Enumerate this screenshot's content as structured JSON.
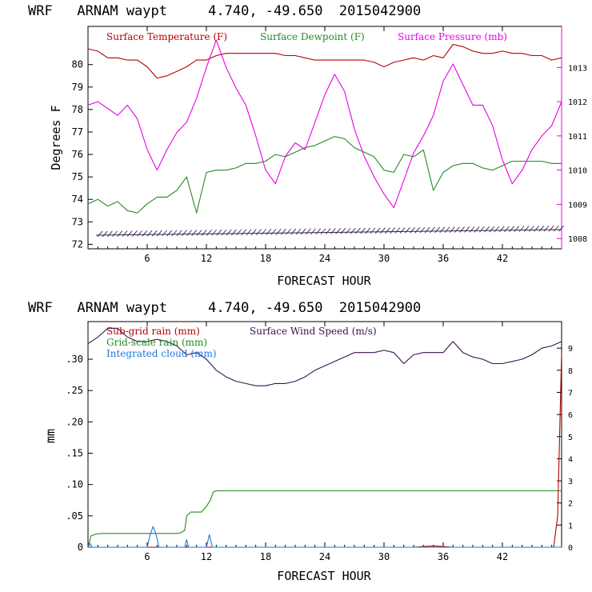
{
  "chart_data": [
    {
      "type": "line",
      "title": "WRF   ARNAM waypt     4.740, -49.650  2015042900",
      "xlabel": "FORECAST HOUR",
      "ylabel": "Degrees F",
      "xlim": [
        0,
        48
      ],
      "ylim": [
        71.8,
        81.7
      ],
      "y2lim": [
        1007.7,
        1014.2
      ],
      "x_ticks": [
        6,
        12,
        18,
        24,
        30,
        36,
        42
      ],
      "y_ticks": [
        72,
        73,
        74,
        75,
        76,
        77,
        78,
        79,
        80
      ],
      "y2_ticks": [
        1008,
        1009,
        1010,
        1011,
        1012,
        1013
      ],
      "grid": false,
      "legend_position": "top",
      "colors": {
        "surface_temperature": "#b40000",
        "surface_dewpoint": "#228b22",
        "surface_pressure": "#e600e6",
        "wind_barbs": "#3a2050"
      },
      "series": [
        {
          "name": "Surface Temperature (F)",
          "axis": "left",
          "color": "#b40000",
          "x": [
            0,
            1,
            2,
            3,
            4,
            5,
            6,
            7,
            8,
            9,
            10,
            11,
            12,
            13,
            14,
            15,
            16,
            17,
            18,
            19,
            20,
            21,
            22,
            23,
            24,
            25,
            26,
            27,
            28,
            29,
            30,
            31,
            32,
            33,
            34,
            35,
            36,
            37,
            38,
            39,
            40,
            41,
            42,
            43,
            44,
            45,
            46,
            47,
            48
          ],
          "values": [
            80.7,
            80.6,
            80.3,
            80.3,
            80.2,
            80.2,
            79.9,
            79.4,
            79.5,
            79.7,
            79.9,
            80.2,
            80.2,
            80.4,
            80.5,
            80.5,
            80.5,
            80.5,
            80.5,
            80.5,
            80.4,
            80.4,
            80.3,
            80.2,
            80.2,
            80.2,
            80.2,
            80.2,
            80.2,
            80.1,
            79.9,
            80.1,
            80.2,
            80.3,
            80.2,
            80.4,
            80.3,
            80.9,
            80.8,
            80.6,
            80.5,
            80.5,
            80.6,
            80.5,
            80.5,
            80.4,
            80.4,
            80.2,
            80.3
          ]
        },
        {
          "name": "Surface Dewpoint (F)",
          "axis": "left",
          "color": "#228b22",
          "x": [
            0,
            1,
            2,
            3,
            4,
            5,
            6,
            7,
            8,
            9,
            10,
            11,
            12,
            13,
            14,
            15,
            16,
            17,
            18,
            19,
            20,
            21,
            22,
            23,
            24,
            25,
            26,
            27,
            28,
            29,
            30,
            31,
            32,
            33,
            34,
            35,
            36,
            37,
            38,
            39,
            40,
            41,
            42,
            43,
            44,
            45,
            46,
            47,
            48
          ],
          "values": [
            73.8,
            74.0,
            73.7,
            73.9,
            73.5,
            73.4,
            73.8,
            74.1,
            74.1,
            74.4,
            75.0,
            73.4,
            75.2,
            75.3,
            75.3,
            75.4,
            75.6,
            75.6,
            75.7,
            76.0,
            75.9,
            76.1,
            76.3,
            76.4,
            76.6,
            76.8,
            76.7,
            76.3,
            76.1,
            75.9,
            75.3,
            75.2,
            76.0,
            75.9,
            76.2,
            74.4,
            75.2,
            75.5,
            75.6,
            75.6,
            75.4,
            75.3,
            75.5,
            75.7,
            75.7,
            75.7,
            75.7,
            75.6,
            75.6
          ]
        },
        {
          "name": "Surface Pressure (mb)",
          "axis": "right",
          "color": "#e600e6",
          "x": [
            0,
            1,
            2,
            3,
            4,
            5,
            6,
            7,
            8,
            9,
            10,
            11,
            12,
            13,
            14,
            15,
            16,
            17,
            18,
            19,
            20,
            21,
            22,
            23,
            24,
            25,
            26,
            27,
            28,
            29,
            30,
            31,
            32,
            33,
            34,
            35,
            36,
            37,
            38,
            39,
            40,
            41,
            42,
            43,
            44,
            45,
            46,
            47,
            48
          ],
          "values": [
            1011.9,
            1012.0,
            1011.8,
            1011.6,
            1011.9,
            1011.5,
            1010.6,
            1010.0,
            1010.6,
            1011.1,
            1011.4,
            1012.1,
            1013.0,
            1013.8,
            1013.0,
            1012.4,
            1011.9,
            1011.0,
            1010.0,
            1009.6,
            1010.4,
            1010.8,
            1010.6,
            1011.4,
            1012.2,
            1012.8,
            1012.3,
            1011.2,
            1010.4,
            1009.8,
            1009.3,
            1008.9,
            1009.7,
            1010.5,
            1011.0,
            1011.6,
            1012.6,
            1013.1,
            1012.5,
            1011.9,
            1011.9,
            1011.3,
            1010.3,
            1009.6,
            1010.0,
            1010.6,
            1011.0,
            1011.3,
            1012.0
          ]
        }
      ],
      "legend": [
        {
          "label": "Surface Temperature (F)",
          "color": "#b40000"
        },
        {
          "label": "Surface Dewpoint (F)",
          "color": "#228b22"
        },
        {
          "label": "Surface Pressure (mb)",
          "color": "#e600e6"
        }
      ]
    },
    {
      "type": "line",
      "title": "WRF   ARNAM waypt     4.740, -49.650  2015042900",
      "xlabel": "FORECAST HOUR",
      "ylabel": "mm",
      "xlim": [
        0,
        48
      ],
      "ylim": [
        0,
        0.36
      ],
      "y2lim": [
        0,
        10.2
      ],
      "x_ticks": [
        6,
        12,
        18,
        24,
        30,
        36,
        42
      ],
      "y_ticks": [
        0,
        0.05,
        0.1,
        0.15,
        0.2,
        0.25,
        0.3
      ],
      "y_tick_labels": [
        "0",
        ".05",
        ".10",
        ".15",
        ".20",
        ".25",
        ".30"
      ],
      "y2_ticks": [
        0,
        1,
        2,
        3,
        4,
        5,
        6,
        7,
        8,
        9
      ],
      "grid": false,
      "legend_position": "top-left",
      "colors": {
        "sub_grid_rain": "#b40000",
        "grid_scale_rain": "#228b22",
        "integrated_cloud": "#1e78dc",
        "surface_wind_speed": "#3a1050"
      },
      "series": [
        {
          "name": "Sub-grid rain (mm)",
          "axis": "left",
          "color": "#b40000",
          "x": [
            0,
            33,
            34,
            35,
            36,
            37,
            47.2,
            47.6,
            48
          ],
          "values": [
            0,
            0,
            0.001,
            0.002,
            0.001,
            0,
            0,
            0.05,
            0.31
          ]
        },
        {
          "name": "Grid-scale rain (mm)",
          "axis": "left",
          "color": "#228b22",
          "x": [
            0,
            0.3,
            0.8,
            1.5,
            9,
            9.4,
            9.8,
            10.0,
            10.4,
            11,
            11.5,
            12.0,
            12.4,
            12.7,
            13,
            48
          ],
          "values": [
            0,
            0.018,
            0.021,
            0.022,
            0.022,
            0.023,
            0.027,
            0.05,
            0.056,
            0.056,
            0.056,
            0.065,
            0.075,
            0.088,
            0.09,
            0.09
          ]
        },
        {
          "name": "Integrated cloud (mm)",
          "axis": "left",
          "color": "#1e78dc",
          "x": [
            0,
            0.2,
            0.4,
            6,
            6.3,
            6.6,
            6.9,
            7.2,
            9.8,
            10.0,
            10.2,
            12.0,
            12.3,
            12.6,
            48
          ],
          "values": [
            0,
            0.006,
            0,
            0,
            0.02,
            0.033,
            0.02,
            0,
            0,
            0.012,
            0,
            0,
            0.02,
            0,
            0
          ]
        },
        {
          "name": "Surface Wind Speed (m/s)",
          "axis": "right",
          "color": "#3a1050",
          "x": [
            0,
            1,
            2,
            3,
            4,
            5,
            6,
            7,
            8,
            9,
            10,
            11,
            12,
            13,
            14,
            15,
            16,
            17,
            18,
            19,
            20,
            21,
            22,
            23,
            24,
            25,
            26,
            27,
            28,
            29,
            30,
            31,
            32,
            33,
            34,
            35,
            36,
            37,
            38,
            39,
            40,
            41,
            42,
            43,
            44,
            45,
            46,
            47,
            48
          ],
          "values": [
            9.2,
            9.5,
            9.9,
            9.9,
            9.5,
            9.3,
            9.3,
            9.4,
            9.3,
            9.1,
            8.7,
            8.8,
            8.5,
            8.0,
            7.7,
            7.5,
            7.4,
            7.3,
            7.3,
            7.4,
            7.4,
            7.5,
            7.7,
            8.0,
            8.2,
            8.4,
            8.6,
            8.8,
            8.8,
            8.8,
            8.9,
            8.8,
            8.3,
            8.7,
            8.8,
            8.8,
            8.8,
            9.3,
            8.8,
            8.6,
            8.5,
            8.3,
            8.3,
            8.4,
            8.5,
            8.7,
            9.0,
            9.1,
            9.3
          ]
        }
      ],
      "legend": [
        {
          "label": "Sub-grid rain (mm)",
          "color": "#b40000"
        },
        {
          "label": "Surface Wind Speed (m/s)",
          "color": "#3a1050"
        },
        {
          "label": "Grid-scale rain (mm)",
          "color": "#228b22"
        },
        {
          "label": "Integrated cloud (mm)",
          "color": "#1e78dc"
        }
      ]
    }
  ]
}
